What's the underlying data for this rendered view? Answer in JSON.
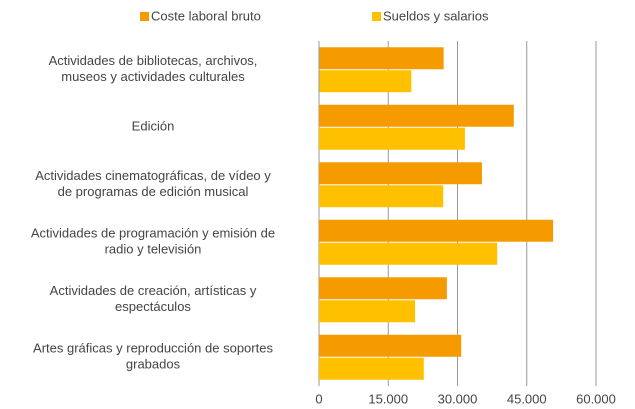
{
  "chart_data": {
    "type": "hbar",
    "categories": [
      [
        "Actividades de bibliotecas, archivos,",
        "museos y actividades culturales"
      ],
      [
        "Edición"
      ],
      [
        "Actividades cinematográficas, de vídeo y",
        "de programas de edición musical"
      ],
      [
        "Actividades de programación y emisión de",
        "radio y televisión"
      ],
      [
        "Actividades de creación, artísticas y",
        "espectáculos"
      ],
      [
        "Artes gráficas y reproducción de soportes",
        "grabados"
      ]
    ],
    "series": [
      {
        "name": "Coste laboral bruto",
        "color": "#f59b00",
        "values": [
          27000,
          42200,
          35300,
          50700,
          27700,
          30800
        ]
      },
      {
        "name": "Sueldos y salarios",
        "color": "#ffc000",
        "values": [
          20000,
          31600,
          26900,
          38600,
          20800,
          22700
        ]
      }
    ],
    "xlim": [
      0,
      60000
    ],
    "xticks": [
      0,
      {
        "value": 15000,
        "label": "15.000"
      },
      {
        "value": 30000,
        "label": "30.000"
      },
      {
        "value": 45000,
        "label": "45.000"
      },
      {
        "value": 60000,
        "label": "60.000"
      }
    ],
    "grid": true,
    "legend": "top"
  }
}
